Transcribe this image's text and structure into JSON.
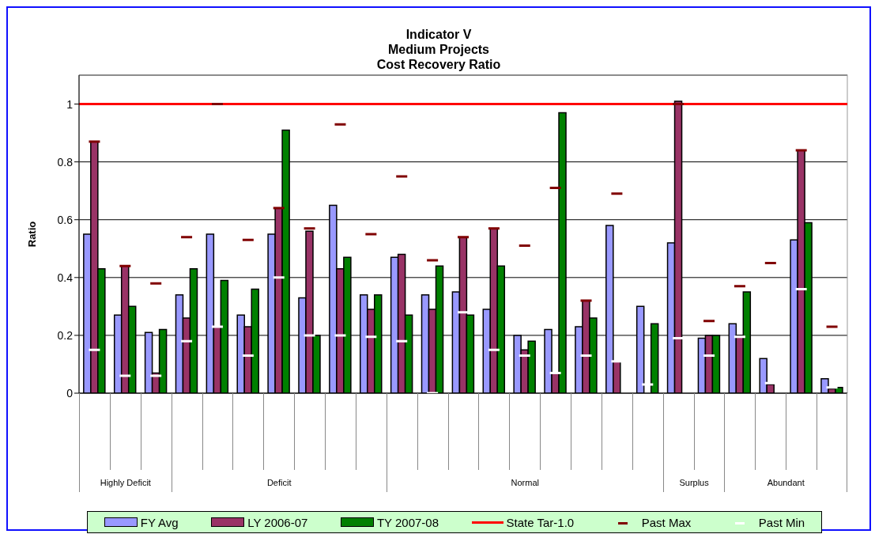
{
  "chart_data": {
    "type": "bar",
    "title": "Indicator V\nMedium Projects\nCost Recovery Ratio",
    "ylabel": "Ratio",
    "categories": [
      null,
      null,
      null,
      null,
      null,
      null,
      null,
      null,
      null,
      null,
      null,
      null,
      null,
      null,
      null,
      null,
      null,
      null,
      null,
      null,
      null,
      null,
      null,
      null,
      null
    ],
    "series": [
      {
        "name": "FY Avg",
        "color": "#9999ff",
        "values": [
          0.55,
          0.27,
          0.21,
          0.34,
          0.55,
          0.27,
          0.55,
          0.33,
          0.65,
          0.34,
          0.47,
          0.34,
          0.35,
          0.29,
          0.2,
          0.22,
          0.23,
          0.58,
          0.3,
          0.52,
          0.19,
          0.24,
          0.12,
          0.53,
          0.05
        ]
      },
      {
        "name": "LY 2006-07",
        "color": "#993366",
        "values": [
          0.87,
          0.44,
          0.07,
          0.26,
          0.23,
          0.23,
          0.64,
          0.56,
          0.43,
          0.29,
          0.48,
          0.29,
          0.54,
          0.57,
          0.15,
          0.07,
          0.32,
          0.11,
          null,
          1.01,
          0.2,
          0.2,
          0.03,
          0.84,
          0.015
        ]
      },
      {
        "name": "TY 2007-08",
        "color": "#008000",
        "values": [
          0.43,
          0.3,
          0.22,
          0.43,
          0.39,
          0.36,
          0.91,
          0.2,
          0.47,
          0.34,
          0.27,
          0.44,
          0.27,
          0.44,
          0.18,
          0.97,
          0.26,
          null,
          0.24,
          null,
          0.2,
          0.35,
          null,
          0.59,
          0.02
        ]
      },
      {
        "name": "Past Max",
        "type": "scatter",
        "color": "#800000",
        "values": [
          0.87,
          0.44,
          0.38,
          0.54,
          1.0,
          0.53,
          0.64,
          0.57,
          0.93,
          0.55,
          0.75,
          0.46,
          0.54,
          0.57,
          0.51,
          0.71,
          0.32,
          0.69,
          null,
          1.0,
          0.25,
          0.37,
          0.45,
          0.84,
          0.23
        ]
      },
      {
        "name": "Past Min",
        "type": "scatter",
        "color": "#ffffff",
        "values": [
          0.15,
          0.06,
          0.06,
          0.18,
          0.23,
          0.13,
          0.4,
          0.2,
          0.2,
          0.195,
          0.18,
          0.0,
          0.28,
          0.15,
          0.13,
          0.07,
          0.13,
          0.11,
          0.03,
          0.19,
          0.13,
          0.195,
          0.035,
          0.36,
          0.02
        ]
      }
    ],
    "ref_lines": [
      {
        "axis": "y",
        "value": 1,
        "label": "State Tar-1.0",
        "color": "#ff0000"
      }
    ],
    "ylim": [
      0,
      1.1
    ],
    "yticks": [
      0,
      0.2,
      0.4,
      0.6,
      0.8,
      1
    ],
    "grid": "y",
    "legend": "bottom",
    "annotations": [
      "Highly Deficit",
      "Deficit",
      "Normal",
      "Surplus",
      "Abundant"
    ]
  }
}
